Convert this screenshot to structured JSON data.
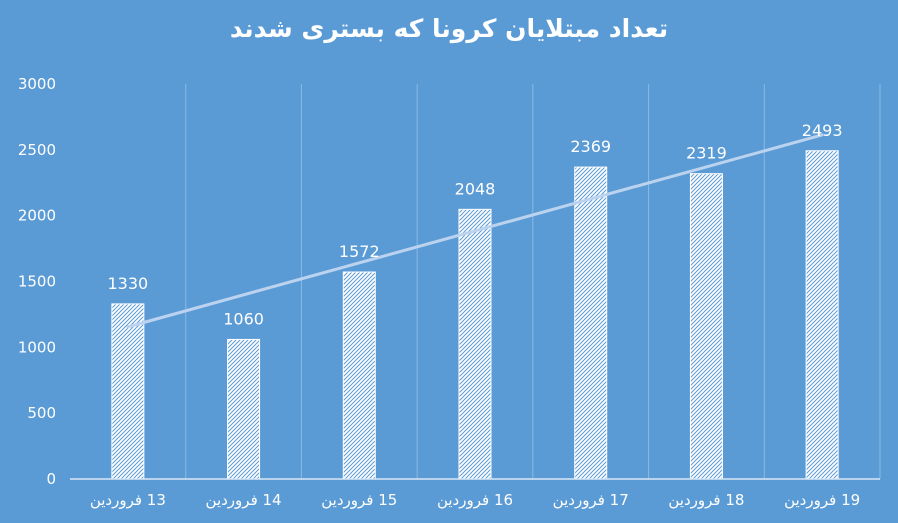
{
  "title": "تعداد مبتلایان کرونا که بستری شدند",
  "colors": {
    "background": "#5b9bd5",
    "bar_fill": "#ffffff",
    "bar_hatch": "#5b9bd5",
    "trendline": "#bcd3ef",
    "gridline": "#8ab8e3",
    "axis_line": "#dbe8f6",
    "text": "#ffffff"
  },
  "chart_data": {
    "type": "bar",
    "title": "تعداد مبتلایان کرونا که بستری شدند",
    "categories": [
      "13 فروردین",
      "14 فروردین",
      "15 فروردین",
      "16 فروردین",
      "17 فروردین",
      "18 فروردین",
      "19 فروردین"
    ],
    "values": [
      1330,
      1060,
      1572,
      2048,
      2369,
      2319,
      2493
    ],
    "data_labels": [
      "1330",
      "1060",
      "1572",
      "2048",
      "2369",
      "2319",
      "2493"
    ],
    "ylim": [
      0,
      3000
    ],
    "yticks": [
      0,
      500,
      1000,
      1500,
      2000,
      2500,
      3000
    ],
    "ytick_labels": [
      "0",
      "500",
      "1000",
      "1500",
      "2000",
      "2500",
      "3000"
    ],
    "trendline": "linear",
    "grid": "vertical between categories",
    "legend": "none",
    "bar_pattern": "hatched"
  }
}
